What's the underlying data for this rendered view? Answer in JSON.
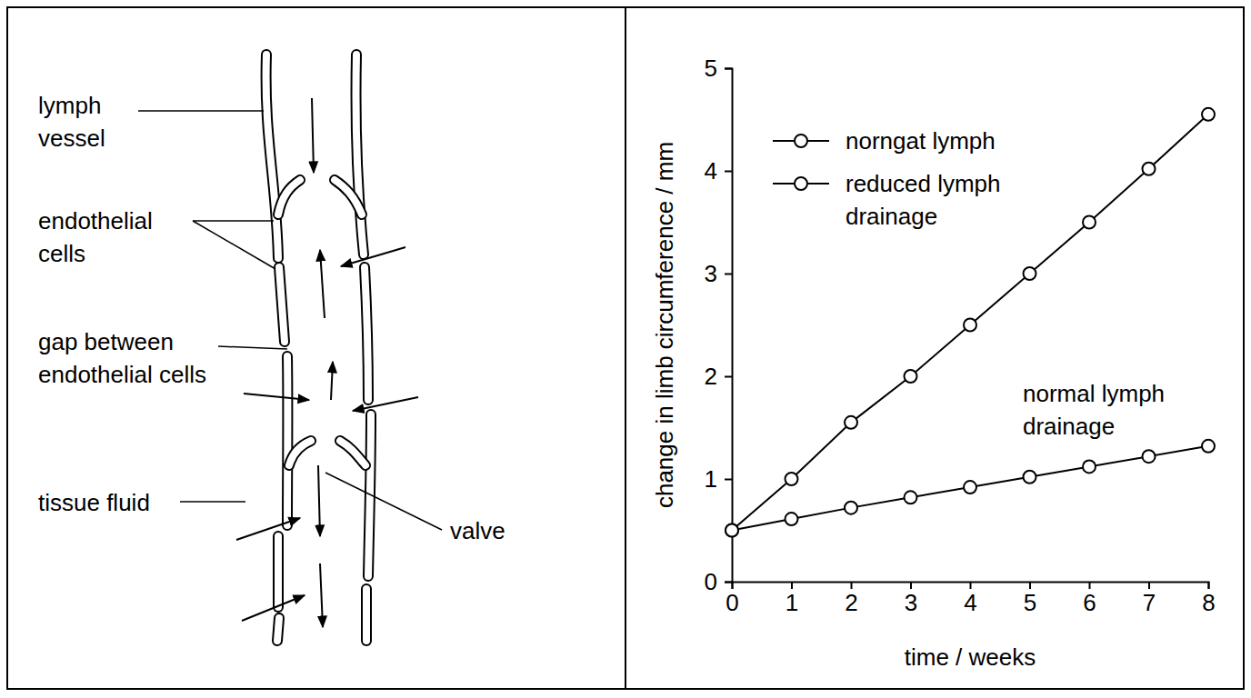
{
  "diagram": {
    "labels": [
      "lymph vessel",
      "endothelial cells",
      "gap between endothelial cells",
      "tissue fluid",
      "valve"
    ]
  },
  "chart_data": {
    "type": "line",
    "x_label": "time / weeks",
    "y_label": "change in limb circumference / mm",
    "x": [
      0,
      1,
      2,
      3,
      4,
      5,
      6,
      7,
      8
    ],
    "series": [
      {
        "name": "norngat lymph",
        "color": "#000000",
        "marker": "circle",
        "line_style": "solid",
        "values": [
          0.5,
          0.61,
          0.72,
          0.82,
          0.92,
          1.02,
          1.12,
          1.22,
          1.32
        ]
      },
      {
        "name": "reduced lymph drainage",
        "color": "#000000",
        "marker": "circle",
        "line_style": "solid",
        "values": [
          0.5,
          1.0,
          1.55,
          2.0,
          2.5,
          3.0,
          3.5,
          4.02,
          4.55
        ]
      }
    ],
    "annotations": [
      "normal lymph drainage"
    ],
    "xlim": [
      0,
      8
    ],
    "xticks": [
      0,
      1,
      2,
      3,
      4,
      5,
      6,
      7,
      8
    ],
    "ylim": [
      0,
      5
    ],
    "yticks": [
      0,
      1,
      2,
      3,
      4,
      5
    ],
    "grid": false,
    "legend": "top-left"
  }
}
